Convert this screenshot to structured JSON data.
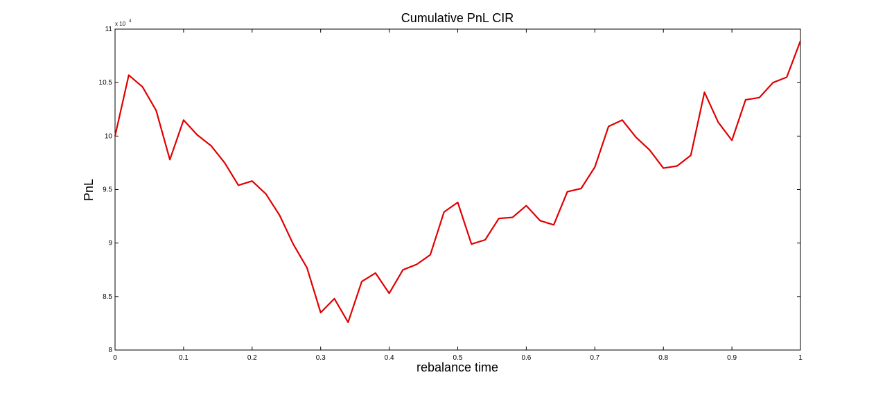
{
  "chart_data": {
    "type": "line",
    "title": "Cumulative PnL CIR",
    "xlabel": "rebalance time",
    "ylabel": "PnL",
    "y_exponent_label": "x 10",
    "y_exponent_power": "4",
    "xlim": [
      0,
      1
    ],
    "ylim": [
      8,
      11
    ],
    "grid": false,
    "x_ticks": [
      0,
      0.1,
      0.2,
      0.3,
      0.4,
      0.5,
      0.6,
      0.7,
      0.8,
      0.9,
      1
    ],
    "x_tick_labels": [
      "0",
      "0.1",
      "0.2",
      "0.3",
      "0.4",
      "0.5",
      "0.6",
      "0.7",
      "0.8",
      "0.9",
      "1"
    ],
    "y_ticks": [
      8,
      8.5,
      9,
      9.5,
      10,
      10.5,
      11
    ],
    "y_tick_labels": [
      "8",
      "8.5",
      "9",
      "9.5",
      "10",
      "10.5",
      "11"
    ],
    "series": [
      {
        "color": "#e00000",
        "x": [
          0,
          0.02,
          0.04,
          0.06,
          0.08,
          0.1,
          0.12,
          0.14,
          0.16,
          0.18,
          0.2,
          0.22,
          0.24,
          0.26,
          0.28,
          0.3,
          0.32,
          0.34,
          0.36,
          0.38,
          0.4,
          0.42,
          0.44,
          0.46,
          0.48,
          0.5,
          0.52,
          0.54,
          0.56,
          0.58,
          0.6,
          0.62,
          0.64,
          0.66,
          0.68,
          0.7,
          0.72,
          0.74,
          0.76,
          0.78,
          0.8,
          0.82,
          0.84,
          0.86,
          0.88,
          0.9,
          0.92,
          0.94,
          0.96,
          0.98,
          1
        ],
        "y": [
          10.0,
          10.57,
          10.46,
          10.24,
          9.78,
          10.15,
          10.01,
          9.91,
          9.75,
          9.54,
          9.58,
          9.46,
          9.26,
          8.99,
          8.77,
          8.35,
          8.48,
          8.26,
          8.64,
          8.72,
          8.53,
          8.75,
          8.8,
          8.89,
          9.29,
          9.38,
          8.99,
          9.03,
          9.23,
          9.24,
          9.35,
          9.21,
          9.17,
          9.48,
          9.51,
          9.71,
          10.09,
          10.15,
          9.99,
          9.87,
          9.7,
          9.72,
          9.82,
          10.41,
          10.13,
          9.96,
          10.34,
          10.36,
          10.5,
          10.55,
          10.89
        ]
      }
    ]
  }
}
